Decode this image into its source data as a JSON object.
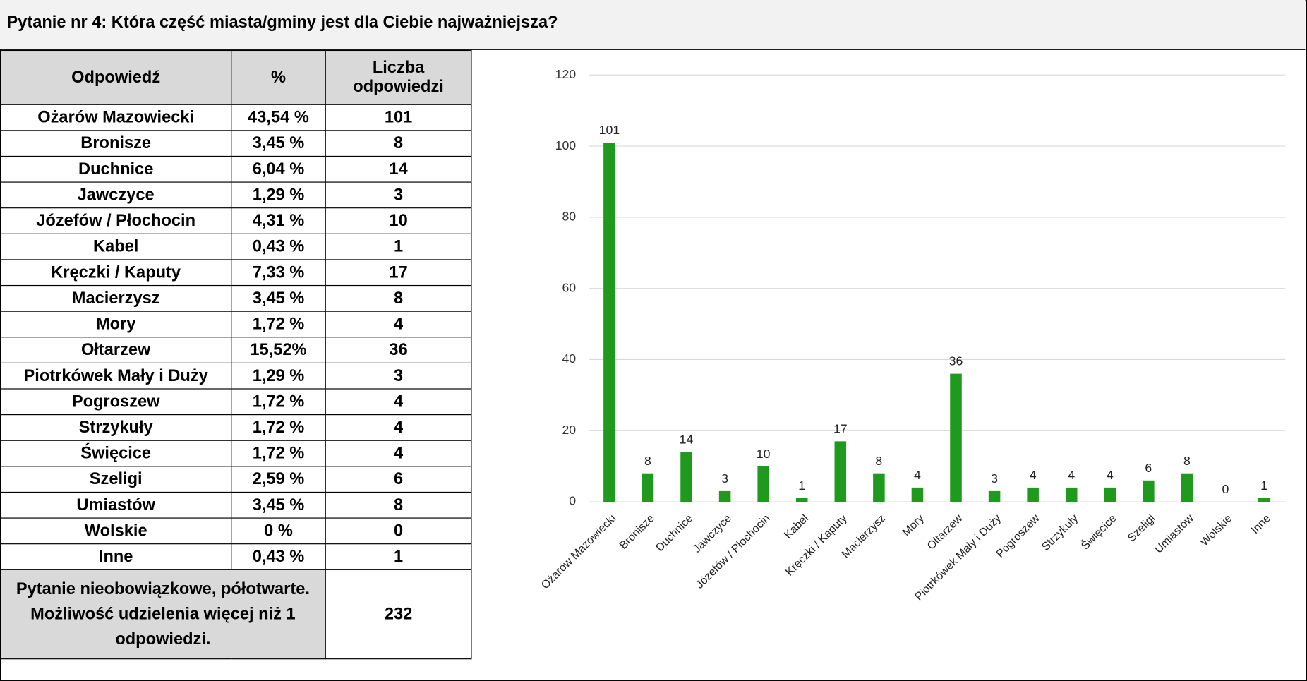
{
  "header": {
    "title": "Pytanie nr 4: Która część miasta/gminy jest dla Ciebie najważniejsza?"
  },
  "table": {
    "columns": [
      "Odpowiedź",
      "%",
      "Liczba odpowiedzi"
    ],
    "rows": [
      [
        "Ożarów Mazowiecki",
        "43,54 %",
        101
      ],
      [
        "Bronisze",
        "3,45 %",
        8
      ],
      [
        "Duchnice",
        "6,04 %",
        14
      ],
      [
        "Jawczyce",
        "1,29 %",
        3
      ],
      [
        "Józefów / Płochocin",
        "4,31 %",
        10
      ],
      [
        "Kabel",
        "0,43 %",
        1
      ],
      [
        "Kręczki / Kaputy",
        "7,33 %",
        17
      ],
      [
        "Macierzysz",
        "3,45 %",
        8
      ],
      [
        "Mory",
        "1,72 %",
        4
      ],
      [
        "Ołtarzew",
        "15,52%",
        36
      ],
      [
        "Piotrkówek Mały i Duży",
        "1,29 %",
        3
      ],
      [
        "Pogroszew",
        "1,72 %",
        4
      ],
      [
        "Strzykuły",
        "1,72 %",
        4
      ],
      [
        "Święcice",
        "1,72 %",
        4
      ],
      [
        "Szeligi",
        "2,59 %",
        6
      ],
      [
        "Umiastów",
        "3,45 %",
        8
      ],
      [
        "Wolskie",
        "0 %",
        0
      ],
      [
        "Inne",
        "0,43 %",
        1
      ]
    ],
    "footer": {
      "label": "Pytanie nieobowiązkowe, półotwarte. Możliwość udzielenia więcej niż 1 odpowiedzi.",
      "total": 232
    }
  },
  "chart_data": {
    "type": "bar",
    "categories": [
      "Ożarów Mazowiecki",
      "Bronisze",
      "Duchnice",
      "Jawczyce",
      "Józefów / Płochocin",
      "Kabel",
      "Kręczki / Kaputy",
      "Macierzysz",
      "Mory",
      "Ołtarzew",
      "Piotrkówek Mały i Duży",
      "Pogroszew",
      "Strzykuły",
      "Święcice",
      "Szeligi",
      "Umiastów",
      "Wolskie",
      "Inne"
    ],
    "values": [
      101,
      8,
      14,
      3,
      10,
      1,
      17,
      8,
      4,
      36,
      3,
      4,
      4,
      4,
      6,
      8,
      0,
      1
    ],
    "color": "#1f9a1f",
    "ylim": [
      0,
      120
    ],
    "yticks": [
      0,
      20,
      40,
      60,
      80,
      100,
      120
    ],
    "grid": true
  }
}
